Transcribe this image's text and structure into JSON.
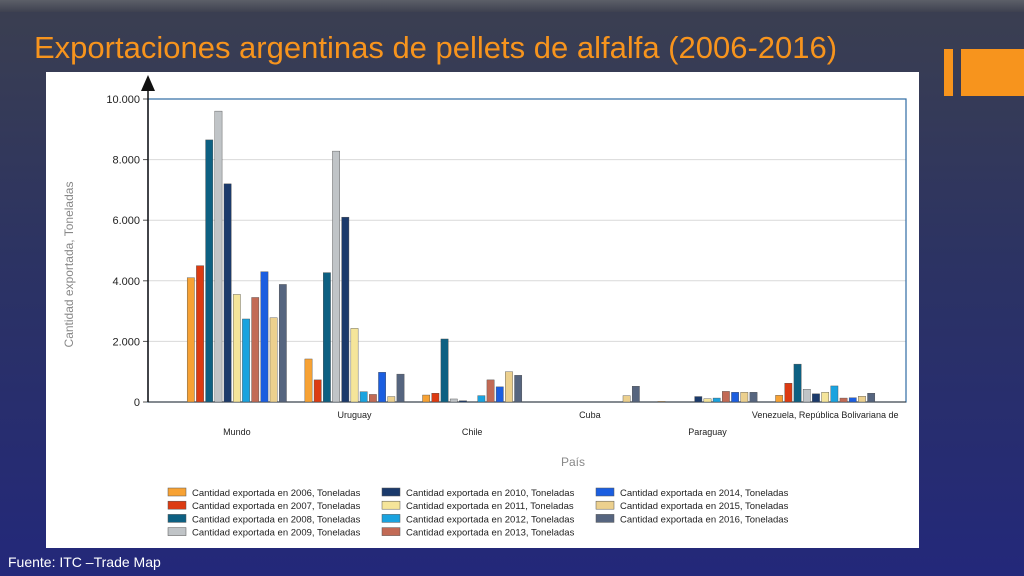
{
  "slide": {
    "title": "Exportaciones argentinas de pellets de alfalfa (2006-2016)",
    "source": "Fuente: ITC –Trade Map",
    "accent_color": "#f7941d",
    "logo_icon": "orange-bar-logo-icon"
  },
  "chart_data": {
    "type": "bar",
    "title": "",
    "xlabel": "País",
    "ylabel": "Cantidad exportada, Toneladas",
    "ylim": [
      0,
      10000
    ],
    "yticks": [
      0,
      2000,
      4000,
      6000,
      8000,
      10000
    ],
    "ytick_labels": [
      "0",
      "2.000",
      "4.000",
      "6.000",
      "8.000",
      "10.000"
    ],
    "grid": true,
    "legend_position": "bottom",
    "categories": [
      "Mundo",
      "Uruguay",
      "Chile",
      "Cuba",
      "Paraguay",
      "Venezuela, República Bolivariana de"
    ],
    "series": [
      {
        "name": "Cantidad exportada en 2006, Toneladas",
        "color": "#f7a234",
        "values": [
          4100,
          1420,
          230,
          0,
          20,
          220
        ]
      },
      {
        "name": "Cantidad exportada en 2007, Toneladas",
        "color": "#dc3b12",
        "values": [
          4500,
          730,
          290,
          0,
          0,
          620
        ]
      },
      {
        "name": "Cantidad exportada en 2008, Toneladas",
        "color": "#0d6082",
        "values": [
          8650,
          4270,
          2080,
          0,
          0,
          1250
        ]
      },
      {
        "name": "Cantidad exportada en 2009, Toneladas",
        "color": "#c0c4c7",
        "values": [
          9600,
          8280,
          100,
          0,
          0,
          420
        ]
      },
      {
        "name": "Cantidad exportada en 2010, Toneladas",
        "color": "#1b3a6b",
        "values": [
          7200,
          6100,
          40,
          0,
          180,
          270
        ]
      },
      {
        "name": "Cantidad exportada en 2011, Toneladas",
        "color": "#f5e59a",
        "values": [
          3550,
          2430,
          0,
          0,
          110,
          320
        ]
      },
      {
        "name": "Cantidad exportada en 2012, Toneladas",
        "color": "#1aa3df",
        "values": [
          2740,
          340,
          210,
          0,
          130,
          530
        ]
      },
      {
        "name": "Cantidad exportada en 2013, Toneladas",
        "color": "#c26a55",
        "values": [
          3450,
          250,
          730,
          0,
          350,
          130
        ]
      },
      {
        "name": "Cantidad exportada en 2014, Toneladas",
        "color": "#1b5ee0",
        "values": [
          4300,
          980,
          500,
          0,
          320,
          140
        ]
      },
      {
        "name": "Cantidad exportada en 2015, Toneladas",
        "color": "#ecd08e",
        "values": [
          2780,
          180,
          1000,
          210,
          320,
          190
        ]
      },
      {
        "name": "Cantidad exportada en 2016, Toneladas",
        "color": "#56657f",
        "values": [
          3880,
          920,
          880,
          520,
          320,
          290
        ]
      }
    ]
  }
}
